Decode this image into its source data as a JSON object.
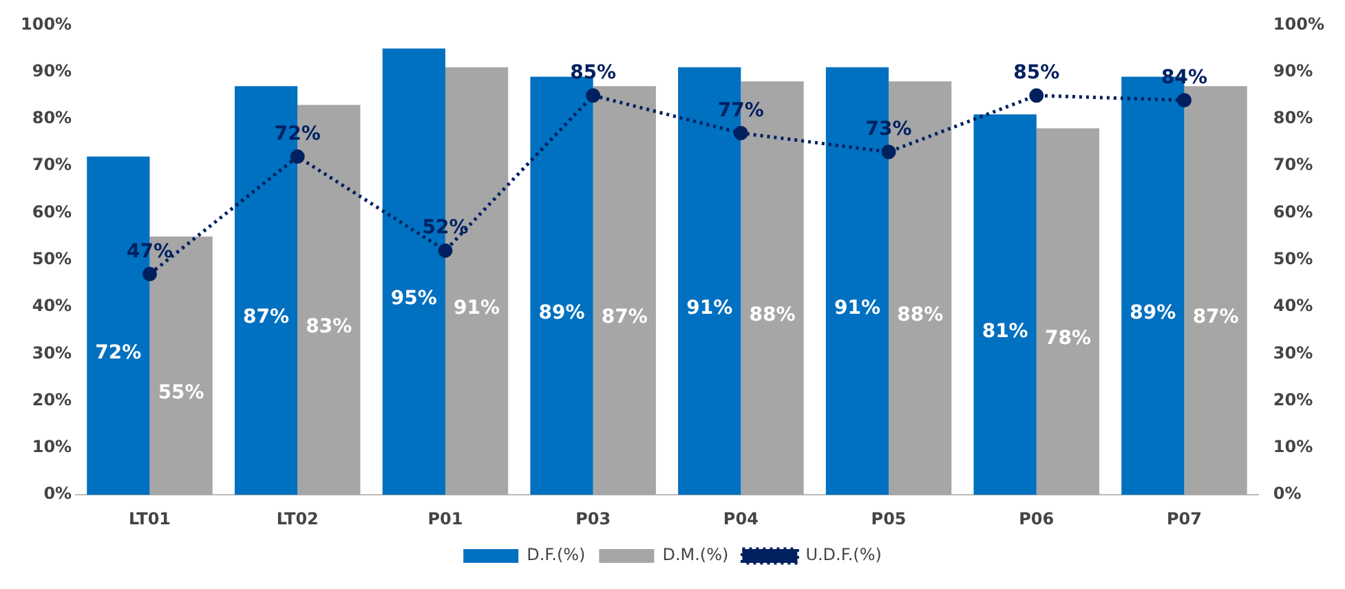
{
  "chart_data": {
    "type": "bar",
    "categories": [
      "LT01",
      "LT02",
      "P01",
      "P03",
      "P04",
      "P05",
      "P06",
      "P07"
    ],
    "series": [
      {
        "name": "D.F.(%)",
        "color": "#0070c0",
        "values": [
          72,
          87,
          95,
          89,
          91,
          91,
          81,
          89
        ],
        "value_labels": [
          "72%",
          "87%",
          "95%",
          "89%",
          "91%",
          "91%",
          "81%",
          "89%"
        ]
      },
      {
        "name": "D.M.(%)",
        "color": "#a6a6a6",
        "values": [
          55,
          83,
          91,
          87,
          88,
          88,
          78,
          87
        ],
        "value_labels": [
          "55%",
          "83%",
          "91%",
          "87%",
          "88%",
          "88%",
          "78%",
          "87%"
        ]
      },
      {
        "name": "U.D.F.(%)",
        "type": "line",
        "color": "#002060",
        "marker": "circle",
        "line_style": "dotted",
        "values": [
          47,
          72,
          52,
          85,
          77,
          73,
          85,
          84
        ],
        "value_labels": [
          "47%",
          "72%",
          "52%",
          "85%",
          "77%",
          "73%",
          "85%",
          "84%"
        ]
      }
    ],
    "ylim": [
      0,
      100
    ],
    "yticks": [
      {
        "value": 0,
        "label": "0%"
      },
      {
        "value": 10,
        "label": "10%"
      },
      {
        "value": 20,
        "label": "20%"
      },
      {
        "value": 30,
        "label": "30%"
      },
      {
        "value": 40,
        "label": "40%"
      },
      {
        "value": 50,
        "label": "50%"
      },
      {
        "value": 60,
        "label": "60%"
      },
      {
        "value": 70,
        "label": "70%"
      },
      {
        "value": 80,
        "label": "80%"
      },
      {
        "value": 90,
        "label": "90%"
      },
      {
        "value": 100,
        "label": "100%"
      }
    ],
    "y2lim": [
      0,
      100
    ],
    "y2ticks": [
      {
        "value": 0,
        "label": "0%"
      },
      {
        "value": 10,
        "label": "10%"
      },
      {
        "value": 20,
        "label": "20%"
      },
      {
        "value": 30,
        "label": "30%"
      },
      {
        "value": 40,
        "label": "40%"
      },
      {
        "value": 50,
        "label": "50%"
      },
      {
        "value": 60,
        "label": "60%"
      },
      {
        "value": 70,
        "label": "70%"
      },
      {
        "value": 80,
        "label": "80%"
      },
      {
        "value": 90,
        "label": "90%"
      },
      {
        "value": 100,
        "label": "100%"
      }
    ],
    "grid": false,
    "legend": "bottom"
  }
}
